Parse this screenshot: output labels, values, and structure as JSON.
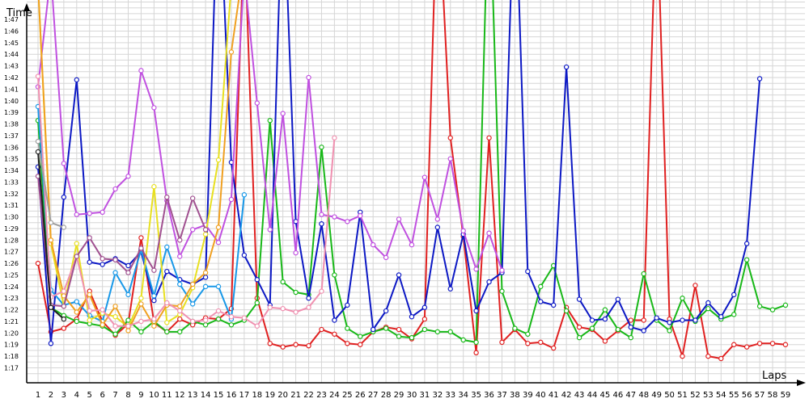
{
  "chart_data": {
    "type": "line",
    "title": "",
    "xlabel": "Laps",
    "ylabel": "Time",
    "x": [
      1,
      2,
      3,
      4,
      5,
      6,
      7,
      8,
      9,
      10,
      11,
      12,
      13,
      14,
      15,
      16,
      17,
      18,
      19,
      20,
      21,
      22,
      23,
      24,
      25,
      26,
      27,
      28,
      29,
      30,
      31,
      32,
      33,
      34,
      35,
      36,
      37,
      38,
      39,
      40,
      41,
      42,
      43,
      44,
      45,
      46,
      47,
      48,
      49,
      50,
      51,
      52,
      53,
      54,
      55,
      56,
      57,
      58,
      59
    ],
    "xlim": [
      1,
      59
    ],
    "ylim": [
      76.5,
      109.5
    ],
    "grid": true,
    "legend": "none",
    "yticks": [
      "1:17",
      "1:18",
      "1:19",
      "1:20",
      "1:21",
      "1:22",
      "1:23",
      "1:24",
      "1:25",
      "1:26",
      "1:27",
      "1:28",
      "1:29",
      "1:30",
      "1:31",
      "1:32",
      "1:33",
      "1:34",
      "1:35",
      "1:36",
      "1:37",
      "1:38",
      "1:39",
      "1:40",
      "1:41",
      "1:42",
      "1:43",
      "1:44",
      "1:45",
      "1:46",
      "1:47"
    ],
    "xticks": [
      "1",
      "2",
      "3",
      "4",
      "5",
      "6",
      "7",
      "8",
      "9",
      "10",
      "11",
      "12",
      "13",
      "14",
      "15",
      "16",
      "17",
      "18",
      "19",
      "20",
      "21",
      "22",
      "23",
      "24",
      "25",
      "26",
      "27",
      "28",
      "29",
      "30",
      "31",
      "32",
      "33",
      "34",
      "35",
      "36",
      "37",
      "38",
      "39",
      "40",
      "41",
      "42",
      "43",
      "44",
      "45",
      "46",
      "47",
      "48",
      "49",
      "50",
      "51",
      "52",
      "53",
      "54",
      "55",
      "56",
      "57",
      "58",
      "59"
    ],
    "series": [
      {
        "color": "#e02020",
        "values": [
          86,
          80.1,
          80.4,
          81.2,
          83.6,
          81,
          79.8,
          80.8,
          88.2,
          80.9,
          80.1,
          81.2,
          80.7,
          81.3,
          81.2,
          82.1,
          115,
          83,
          79.1,
          78.8,
          79,
          78.9,
          80.3,
          79.9,
          79.1,
          79,
          80.1,
          80.5,
          80.3,
          79.5,
          81.2,
          119,
          96.8,
          88.3,
          78.3,
          96.8,
          79.2,
          80.3,
          79.1,
          79.2,
          78.7,
          82.2,
          80.5,
          80.3,
          79.3,
          80.2,
          81.1,
          81.1,
          118,
          81.2,
          78,
          84.1,
          78,
          77.8,
          79,
          78.8,
          79.1,
          79.1,
          79
        ]
      },
      {
        "color": "#18b818",
        "values": [
          98.3,
          82.2,
          81.5,
          81,
          80.8,
          80.6,
          79.9,
          81.1,
          80.1,
          81,
          80.1,
          80.1,
          81,
          80.7,
          81.2,
          80.7,
          81.1,
          82.6,
          98.3,
          84.4,
          83.5,
          83.3,
          96,
          85,
          80.4,
          79.7,
          80.1,
          80.4,
          79.7,
          79.6,
          80.3,
          80.1,
          80.1,
          79.4,
          79.2,
          120,
          83.6,
          80.4,
          79.9,
          84,
          85.8,
          81.9,
          79.6,
          80.4,
          82,
          80.3,
          79.6,
          85.1,
          81.1,
          80.2,
          83,
          81,
          82.1,
          81.2,
          81.6,
          86.3,
          82.3,
          82,
          82.4
        ]
      },
      {
        "color": "#0c18c4",
        "values": [
          94.3,
          79.1,
          91.7,
          101.8,
          86.1,
          85.9,
          86.4,
          85.8,
          87,
          82.8,
          85.3,
          84.6,
          84.2,
          84.8,
          120,
          94.7,
          86.7,
          84.6,
          82.4,
          120,
          89.6,
          83,
          89.4,
          81.1,
          82.4,
          90.4,
          80.3,
          81.9,
          85,
          81.4,
          82.2,
          89.1,
          83.8,
          88.5,
          81.9,
          84.4,
          85.2,
          120,
          85.3,
          82.7,
          82.4,
          102.9,
          82.9,
          81.1,
          81.2,
          82.9,
          80.5,
          80.2,
          81.3,
          80.9,
          81.1,
          81.1,
          82.6,
          81.4,
          83.3,
          87.7,
          101.9,
          null,
          null
        ]
      },
      {
        "color": "#c050e0",
        "values": [
          101.2,
          111,
          94.6,
          90.2,
          90.3,
          90.4,
          92.4,
          93.5,
          102.6,
          99.4,
          91.4,
          86.6,
          88.9,
          89.3,
          87.8,
          91.5,
          111,
          99.8,
          88.9,
          98.9,
          86.9,
          102,
          90.2,
          90,
          89.6,
          90.1,
          87.6,
          86.5,
          89.8,
          87.6,
          93.4,
          89.8,
          95,
          88.8,
          85.5,
          88.6,
          85.4,
          null,
          null,
          null,
          null,
          null,
          null,
          null,
          null,
          null,
          null,
          null,
          null,
          null,
          null,
          null,
          null,
          null,
          null,
          null,
          null,
          null,
          null
        ]
      },
      {
        "color": "#1898e8",
        "values": [
          99.5,
          83.7,
          82.4,
          82.7,
          81.5,
          81,
          85.2,
          83.3,
          87.2,
          83.2,
          87.4,
          84.2,
          82.5,
          84,
          84,
          81.2,
          91.9,
          null,
          null,
          null,
          null,
          null,
          null,
          null,
          null,
          null,
          null,
          null,
          null,
          null,
          null,
          null,
          null,
          null,
          null,
          null,
          null,
          null,
          null,
          null,
          null,
          null,
          null,
          null,
          null,
          null,
          null,
          null,
          null,
          null,
          null,
          null,
          null,
          null,
          null,
          null,
          null,
          null,
          null
        ]
      },
      {
        "color": "#e8e020",
        "values": [
          110,
          87.7,
          82.3,
          87.7,
          81.1,
          81.7,
          81.4,
          80.5,
          83,
          92.6,
          80.9,
          81.6,
          83.9,
          88.5,
          94.9,
          110,
          null,
          null,
          null,
          null,
          null,
          null,
          null,
          null,
          null,
          null,
          null,
          null,
          null,
          null,
          null,
          null,
          null,
          null,
          null,
          null,
          null,
          null,
          null,
          null,
          null,
          null,
          null,
          null,
          null,
          null,
          null,
          null,
          null,
          null,
          null,
          null,
          null,
          null,
          null,
          null,
          null,
          null,
          null
        ]
      },
      {
        "color": "#f0a020",
        "values": [
          110,
          88,
          83.2,
          81.8,
          83.3,
          80.7,
          82.3,
          80.2,
          82.5,
          80.6,
          82.4,
          82.3,
          84.2,
          85.2,
          89.1,
          104.2,
          112,
          null,
          null,
          null,
          null,
          null,
          null,
          null,
          null,
          null,
          null,
          null,
          null,
          null,
          null,
          null,
          null,
          null,
          null,
          null,
          null,
          null,
          null,
          null,
          null,
          null,
          null,
          null,
          null,
          null,
          null,
          null,
          null,
          null,
          null,
          null,
          null,
          null,
          null,
          null,
          null,
          null,
          null
        ]
      },
      {
        "color": "#f090b0",
        "values": [
          102.1,
          83.1,
          83.6,
          86.6,
          81.9,
          82,
          80.6,
          80.6,
          81,
          81.2,
          82.6,
          81.9,
          81,
          81.1,
          81.9,
          81.4,
          81.3,
          80.6,
          82.2,
          82.1,
          81.8,
          82.2,
          83.6,
          96.8,
          null,
          null,
          null,
          null,
          null,
          null,
          null,
          null,
          null,
          null,
          null,
          null,
          null,
          null,
          null,
          null,
          null,
          null,
          null,
          null,
          null,
          null,
          null,
          null,
          null,
          null,
          null,
          null,
          null,
          null,
          null,
          null,
          null,
          null,
          null
        ]
      },
      {
        "color": "#a05090",
        "values": [
          93.5,
          82.4,
          82.3,
          86.6,
          88.2,
          86.4,
          86.3,
          85.2,
          87.3,
          85.4,
          91.7,
          88,
          91.6,
          88.9,
          null,
          null,
          null,
          null,
          null,
          null,
          null,
          null,
          null,
          null,
          null,
          null,
          null,
          null,
          null,
          null,
          null,
          null,
          null,
          null,
          null,
          null,
          null,
          null,
          null,
          null,
          null,
          null,
          null,
          null,
          null,
          null,
          null,
          null,
          null,
          null,
          null,
          null,
          null,
          null,
          null,
          null,
          null,
          null,
          null
        ]
      },
      {
        "color": "#a0a0a0",
        "values": [
          96.5,
          89.5,
          89.1,
          null,
          null,
          null,
          null,
          null,
          null,
          null,
          null,
          null,
          null,
          null,
          null,
          null,
          null,
          null,
          null,
          null,
          null,
          null,
          null,
          null,
          null,
          null,
          null,
          null,
          null,
          null,
          null,
          null,
          null,
          null,
          null,
          null,
          null,
          null,
          null,
          null,
          null,
          null,
          null,
          null,
          null,
          null,
          null,
          null,
          null,
          null,
          null,
          null,
          null,
          null,
          null,
          null,
          null,
          null,
          null
        ]
      },
      {
        "color": "#202020",
        "values": [
          95.6,
          82.2,
          81.2,
          null,
          null,
          null,
          null,
          null,
          null,
          null,
          null,
          null,
          null,
          null,
          null,
          null,
          null,
          null,
          null,
          null,
          null,
          null,
          null,
          null,
          null,
          null,
          null,
          null,
          null,
          null,
          null,
          null,
          null,
          null,
          null,
          null,
          null,
          null,
          null,
          null,
          null,
          null,
          null,
          null,
          null,
          null,
          null,
          null,
          null,
          null,
          null,
          null,
          null,
          null,
          null,
          null,
          null,
          null,
          null
        ]
      }
    ]
  }
}
